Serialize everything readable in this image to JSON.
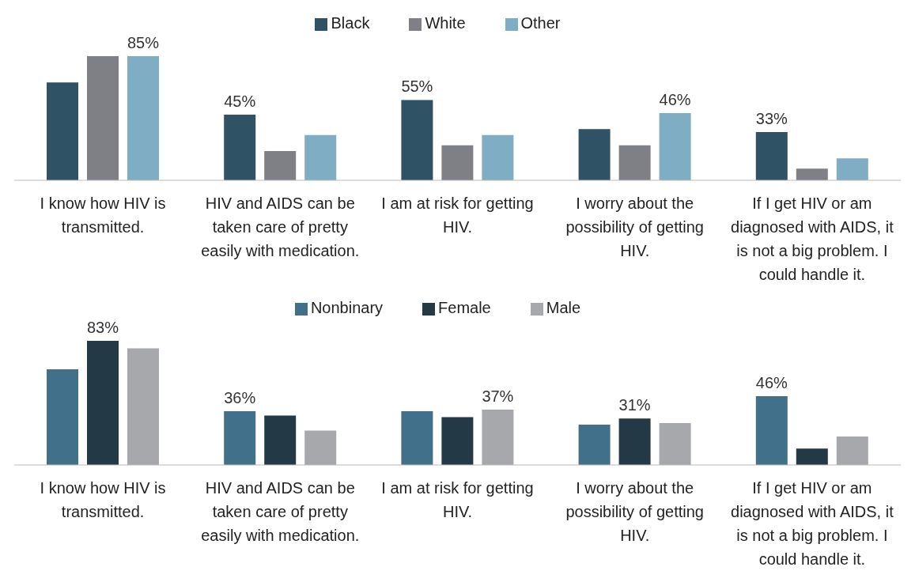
{
  "chart_data": [
    {
      "type": "bar",
      "categories": [
        "I know how HIV is transmitted.",
        "HIV and AIDS can be taken care of pretty easily with medication.",
        "I am at risk for getting HIV.",
        "I worry about the possibility of getting HIV.",
        "If I get HIV or am diagnosed with AIDS, it is not a big problem. I could handle it."
      ],
      "series": [
        {
          "name": "Black",
          "color": "#2f5364",
          "values": [
            67,
            45,
            55,
            35,
            33
          ],
          "value_labels": [
            null,
            "45%",
            "55%",
            null,
            "33%"
          ]
        },
        {
          "name": "White",
          "color": "#7f8085",
          "values": [
            85,
            20,
            24,
            24,
            8
          ],
          "value_labels": [
            null,
            null,
            null,
            null,
            null
          ]
        },
        {
          "name": "Other",
          "color": "#7fadc4",
          "values": [
            85,
            31,
            31,
            46,
            15
          ],
          "value_labels": [
            "85%",
            null,
            null,
            "46%",
            null
          ]
        }
      ],
      "legend": "top",
      "grid": false
    },
    {
      "type": "bar",
      "categories": [
        "I know how HIV is transmitted.",
        "HIV and AIDS can be taken care of pretty easily with medication.",
        "I am at risk for getting HIV.",
        "I worry about the possibility of getting HIV.",
        "If I get HIV or am diagnosed with AIDS, it is not a big problem. I could handle it."
      ],
      "series": [
        {
          "name": "Nonbinary",
          "color": "#41708a",
          "values": [
            64,
            36,
            36,
            27,
            46
          ],
          "value_labels": [
            null,
            "36%",
            null,
            null,
            "46%"
          ]
        },
        {
          "name": "Female",
          "color": "#233a46",
          "values": [
            83,
            33,
            32,
            31,
            11
          ],
          "value_labels": [
            "83%",
            null,
            null,
            "31%",
            null
          ]
        },
        {
          "name": "Male",
          "color": "#a7a8ac",
          "values": [
            78,
            23,
            37,
            28,
            19
          ],
          "value_labels": [
            null,
            null,
            "37%",
            null,
            null
          ]
        }
      ],
      "legend": "top",
      "grid": false
    }
  ]
}
